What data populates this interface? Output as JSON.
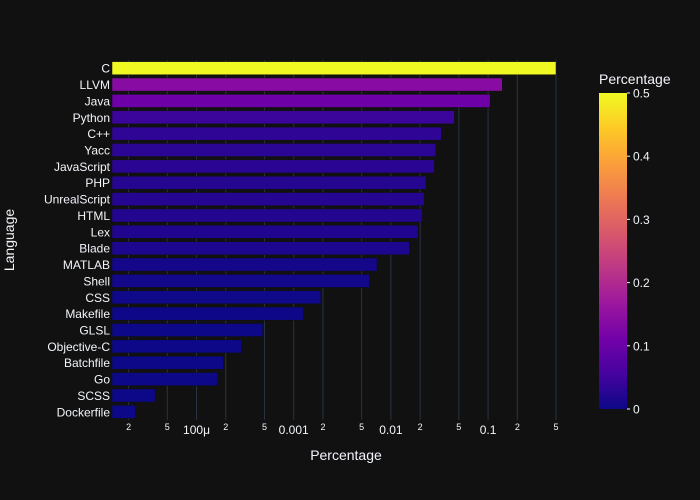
{
  "chart_data": {
    "type": "bar",
    "orientation": "horizontal",
    "xlabel": "Percentage",
    "ylabel": "Language",
    "x_scale": "log",
    "xlim": [
      1.35e-05,
      0.5
    ],
    "grid": true,
    "x_ticks": [
      {
        "value": 2e-05,
        "label": "2"
      },
      {
        "value": 5e-05,
        "label": "5"
      },
      {
        "value": 0.0001,
        "label": "100μ"
      },
      {
        "value": 0.0002,
        "label": "2"
      },
      {
        "value": 0.0005,
        "label": "5"
      },
      {
        "value": 0.001,
        "label": "0.001"
      },
      {
        "value": 0.002,
        "label": "2"
      },
      {
        "value": 0.005,
        "label": "5"
      },
      {
        "value": 0.01,
        "label": "0.01"
      },
      {
        "value": 0.02,
        "label": "2"
      },
      {
        "value": 0.05,
        "label": "5"
      },
      {
        "value": 0.1,
        "label": "0.1"
      },
      {
        "value": 0.2,
        "label": "2"
      },
      {
        "value": 0.5,
        "label": "5"
      }
    ],
    "categories": [
      "C",
      "LLVM",
      "Java",
      "Python",
      "C++",
      "Yacc",
      "JavaScript",
      "PHP",
      "UnrealScript",
      "HTML",
      "Lex",
      "Blade",
      "MATLAB",
      "Shell",
      "CSS",
      "Makefile",
      "GLSL",
      "Objective-C",
      "Batchfile",
      "Go",
      "SCSS",
      "Dockerfile"
    ],
    "values": [
      0.5,
      0.14,
      0.105,
      0.045,
      0.033,
      0.029,
      0.028,
      0.023,
      0.022,
      0.021,
      0.019,
      0.0155,
      0.0072,
      0.006,
      0.0019,
      0.00125,
      0.00048,
      0.00029,
      0.00019,
      0.000165,
      3.75e-05,
      2.35e-05
    ],
    "colorscale": "plasma",
    "colorbar": {
      "title": "Percentage",
      "range": [
        0,
        0.5
      ],
      "ticks": [
        "0",
        "0.1",
        "0.2",
        "0.3",
        "0.4",
        "0.5"
      ]
    },
    "background": "#111111",
    "grid_color": "#283442"
  }
}
